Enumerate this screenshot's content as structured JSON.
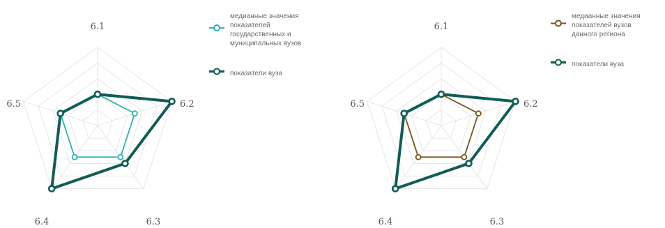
{
  "chart_data": [
    {
      "type": "radar",
      "categories": [
        "6.1",
        "6.2",
        "6.3",
        "6.4",
        "6.5"
      ],
      "grid": true,
      "legend_position": "right",
      "series": [
        {
          "name": "медианные значения показателей государственных и муниципальных вузов",
          "name_lines": [
            "медианные значения",
            "показателей",
            "государственных и",
            "муниципальных вузов"
          ],
          "color": "#2bb5ab",
          "values": [
            0.4,
            0.5,
            0.5,
            0.5,
            0.5
          ]
        },
        {
          "name": "показатели вуза",
          "name_lines": [
            "показатели вуза"
          ],
          "color": "#0f5d57",
          "values": [
            0.4,
            1.0,
            0.6,
            1.0,
            0.5
          ]
        }
      ]
    },
    {
      "type": "radar",
      "categories": [
        "6.1",
        "6.2",
        "6.3",
        "6.4",
        "6.5"
      ],
      "grid": true,
      "legend_position": "right",
      "series": [
        {
          "name": "медианные значения показателей вузов данного региона",
          "name_lines": [
            "медианные значения",
            "показателей вузов",
            "данного региона"
          ],
          "color": "#7a5418",
          "values": [
            0.4,
            0.5,
            0.5,
            0.5,
            0.5
          ]
        },
        {
          "name": "показатели вуза",
          "name_lines": [
            "показатели вуза"
          ],
          "color": "#0f5d57",
          "values": [
            0.4,
            1.0,
            0.6,
            1.0,
            0.5
          ]
        }
      ]
    }
  ]
}
